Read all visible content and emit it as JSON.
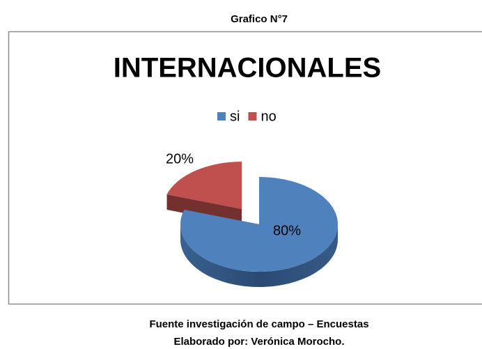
{
  "header": "Grafico N°7",
  "chart_data": {
    "type": "pie",
    "title": "INTERNACIONALES",
    "categories": [
      "si",
      "no"
    ],
    "values": [
      80,
      20
    ],
    "value_labels": [
      "80%",
      "20%"
    ],
    "colors": [
      "#4f81bd",
      "#c0504d"
    ],
    "legend": "top"
  },
  "footer": [
    "Fuente investigación de campo – Encuestas",
    "Elaborado por: Verónica Morocho."
  ]
}
